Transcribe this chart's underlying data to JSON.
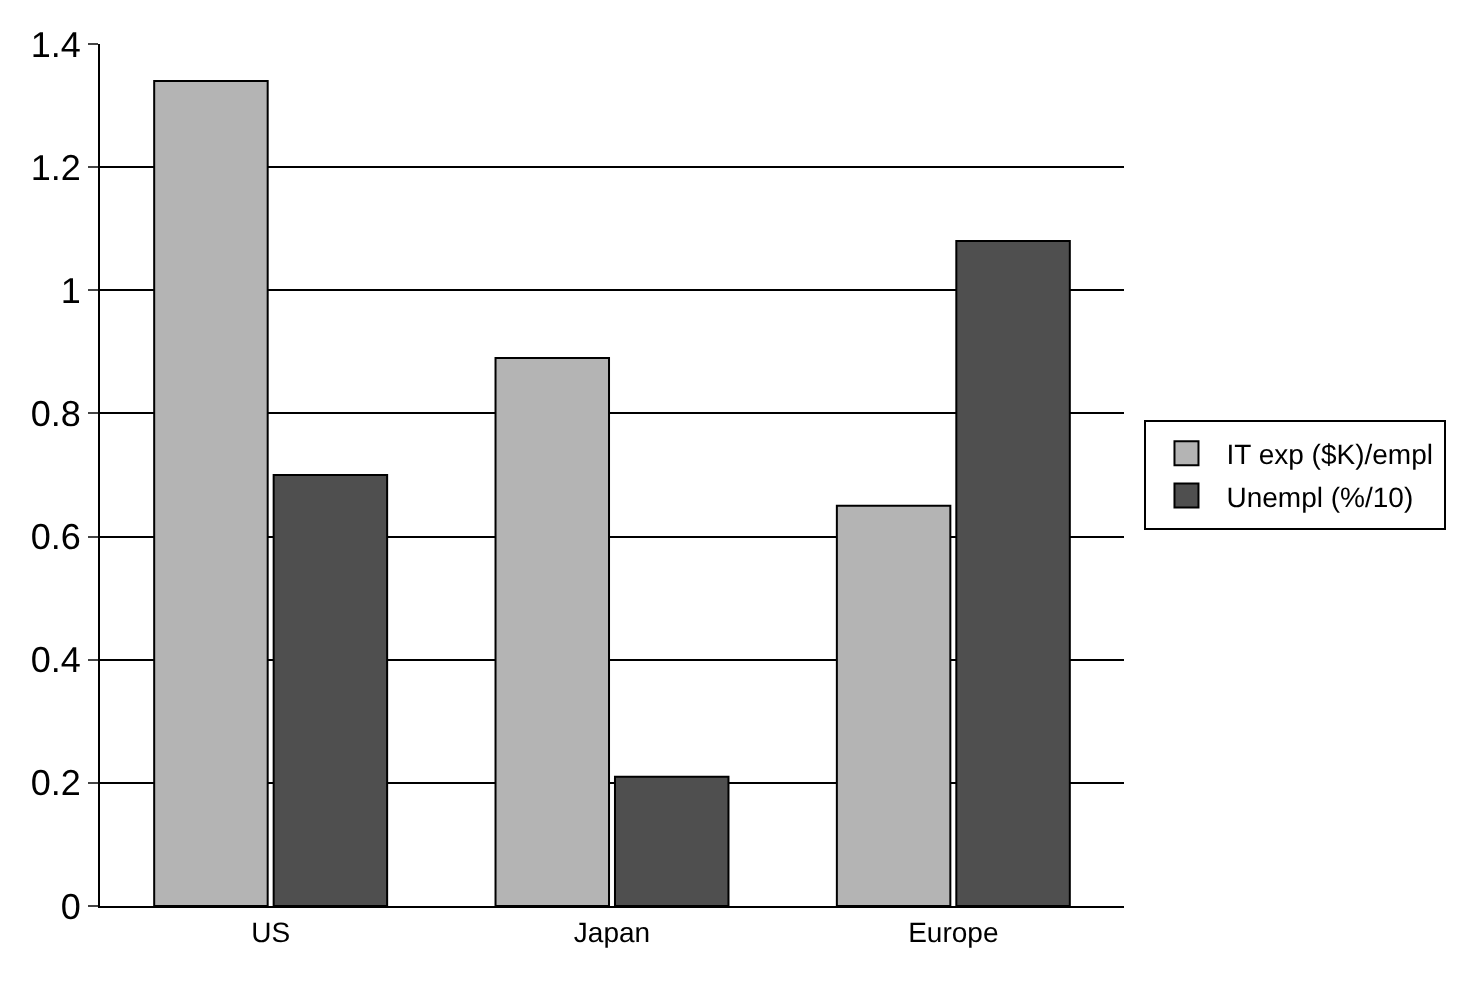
{
  "chart_data": {
    "type": "bar",
    "categories": [
      "US",
      "Japan",
      "Europe"
    ],
    "series": [
      {
        "name": "IT exp ($K)/empl",
        "color": "#b4b4b4",
        "values": [
          1.34,
          0.89,
          0.65
        ]
      },
      {
        "name": "Unempl (%/10)",
        "color": "#4f4f4f",
        "values": [
          0.7,
          0.21,
          1.08
        ]
      }
    ],
    "ylim": [
      0,
      1.4
    ],
    "yticks": [
      0,
      0.2,
      0.4,
      0.6,
      0.8,
      1,
      1.2,
      1.4
    ],
    "grid": "y",
    "legend": "right"
  }
}
